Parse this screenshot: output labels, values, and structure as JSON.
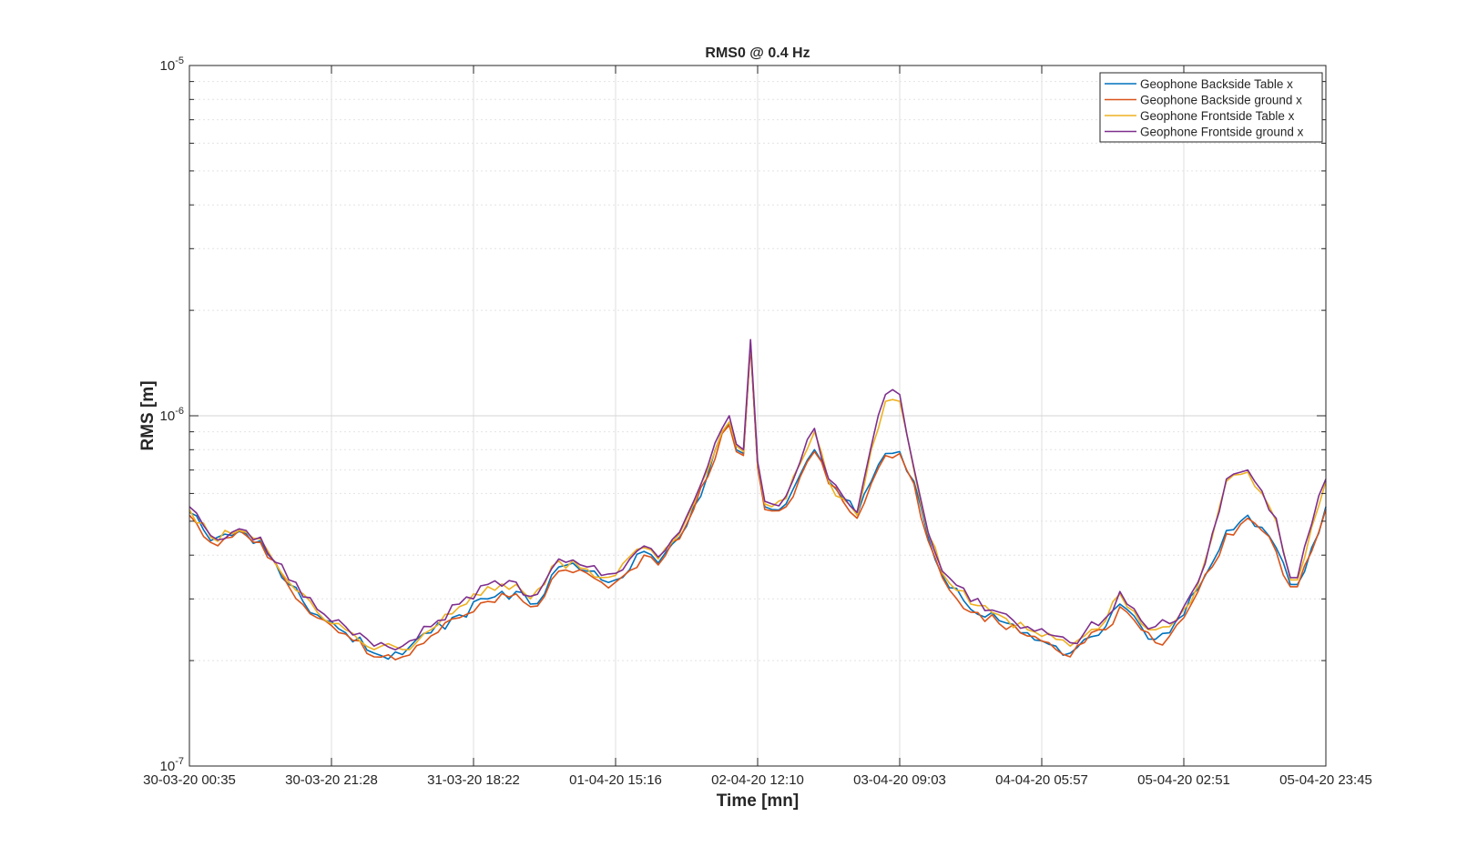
{
  "chart_data": {
    "type": "line",
    "title": "RMS0 @ 0.4 Hz",
    "xlabel": "Time [mn]",
    "ylabel": "RMS [m]",
    "y_scale": "log",
    "ylim": [
      1e-07,
      1e-05
    ],
    "y_ticks": [
      {
        "value": 1e-07,
        "base": "10",
        "exp": "-7"
      },
      {
        "value": 1e-06,
        "base": "10",
        "exp": "-6"
      },
      {
        "value": 1e-05,
        "base": "10",
        "exp": "-5"
      }
    ],
    "x_tick_labels": [
      "30-03-20 00:35",
      "30-03-20 21:28",
      "31-03-20 18:22",
      "01-04-20 15:16",
      "02-04-20 12:10",
      "03-04-20 09:03",
      "04-04-20 05:57",
      "05-04-20 02:51",
      "05-04-20 23:45"
    ],
    "grid": true,
    "legend_position": "top-right",
    "sample_count": 161,
    "series": [
      {
        "name": "Geophone Backside Table x",
        "color": "#0072BD",
        "anchors": [
          [
            0,
            5.3e-07
          ],
          [
            3,
            4.4e-07
          ],
          [
            6,
            4.55e-07
          ],
          [
            8,
            4.6e-07
          ],
          [
            10,
            4.4e-07
          ],
          [
            14,
            3.3e-07
          ],
          [
            18,
            2.7e-07
          ],
          [
            22,
            2.4e-07
          ],
          [
            26,
            2.1e-07
          ],
          [
            30,
            2.08e-07
          ],
          [
            34,
            2.4e-07
          ],
          [
            38,
            2.7e-07
          ],
          [
            42,
            3e-07
          ],
          [
            46,
            3.15e-07
          ],
          [
            48,
            2.9e-07
          ],
          [
            50,
            3.1e-07
          ],
          [
            52,
            3.7e-07
          ],
          [
            56,
            3.6e-07
          ],
          [
            58,
            3.4e-07
          ],
          [
            60,
            3.4e-07
          ],
          [
            64,
            4.1e-07
          ],
          [
            66,
            3.8e-07
          ],
          [
            69,
            4.5e-07
          ],
          [
            71,
            5.5e-07
          ],
          [
            73,
            6.8e-07
          ],
          [
            75,
            9e-07
          ],
          [
            76,
            9.5e-07
          ],
          [
            77,
            8e-07
          ],
          [
            78,
            7.8e-07
          ],
          [
            79,
            1.6e-06
          ],
          [
            80,
            7.2e-07
          ],
          [
            81,
            5.5e-07
          ],
          [
            82,
            5.4e-07
          ],
          [
            84,
            5.6e-07
          ],
          [
            86,
            6.8e-07
          ],
          [
            88,
            8e-07
          ],
          [
            90,
            6.5e-07
          ],
          [
            92,
            5.8e-07
          ],
          [
            94,
            5.2e-07
          ],
          [
            96,
            6.5e-07
          ],
          [
            98,
            7.8e-07
          ],
          [
            100,
            7.9e-07
          ],
          [
            102,
            6.5e-07
          ],
          [
            104,
            4.5e-07
          ],
          [
            106,
            3.5e-07
          ],
          [
            110,
            2.8e-07
          ],
          [
            114,
            2.6e-07
          ],
          [
            118,
            2.4e-07
          ],
          [
            122,
            2.2e-07
          ],
          [
            124,
            2.1e-07
          ],
          [
            126,
            2.3e-07
          ],
          [
            129,
            2.5e-07
          ],
          [
            131,
            2.9e-07
          ],
          [
            132,
            2.8e-07
          ],
          [
            134,
            2.5e-07
          ],
          [
            136,
            2.3e-07
          ],
          [
            138,
            2.4e-07
          ],
          [
            140,
            2.7e-07
          ],
          [
            142,
            3.2e-07
          ],
          [
            144,
            3.8e-07
          ],
          [
            146,
            4.7e-07
          ],
          [
            148,
            5e-07
          ],
          [
            149,
            5.2e-07
          ],
          [
            151,
            4.8e-07
          ],
          [
            153,
            4.2e-07
          ],
          [
            155,
            3.3e-07
          ],
          [
            156,
            3.3e-07
          ],
          [
            158,
            4.2e-07
          ],
          [
            160,
            5.5e-07
          ]
        ]
      },
      {
        "name": "Geophone Backside ground x",
        "color": "#D95319",
        "anchors": [
          [
            0,
            5.2e-07
          ],
          [
            3,
            4.35e-07
          ],
          [
            6,
            4.5e-07
          ],
          [
            8,
            4.55e-07
          ],
          [
            10,
            4.35e-07
          ],
          [
            14,
            3.25e-07
          ],
          [
            18,
            2.65e-07
          ],
          [
            22,
            2.38e-07
          ],
          [
            26,
            2.05e-07
          ],
          [
            30,
            2.05e-07
          ],
          [
            34,
            2.35e-07
          ],
          [
            38,
            2.65e-07
          ],
          [
            42,
            2.95e-07
          ],
          [
            46,
            3.1e-07
          ],
          [
            48,
            2.85e-07
          ],
          [
            50,
            3.05e-07
          ],
          [
            52,
            3.6e-07
          ],
          [
            56,
            3.55e-07
          ],
          [
            58,
            3.35e-07
          ],
          [
            60,
            3.35e-07
          ],
          [
            64,
            4e-07
          ],
          [
            66,
            3.75e-07
          ],
          [
            69,
            4.45e-07
          ],
          [
            71,
            5.4e-07
          ],
          [
            73,
            6.7e-07
          ],
          [
            75,
            8.9e-07
          ],
          [
            76,
            9.4e-07
          ],
          [
            77,
            7.9e-07
          ],
          [
            78,
            7.7e-07
          ],
          [
            79,
            1.58e-06
          ],
          [
            80,
            7.1e-07
          ],
          [
            81,
            5.4e-07
          ],
          [
            82,
            5.35e-07
          ],
          [
            84,
            5.5e-07
          ],
          [
            86,
            6.7e-07
          ],
          [
            88,
            7.9e-07
          ],
          [
            90,
            6.4e-07
          ],
          [
            92,
            5.7e-07
          ],
          [
            94,
            5.1e-07
          ],
          [
            96,
            6.4e-07
          ],
          [
            98,
            7.7e-07
          ],
          [
            100,
            7.8e-07
          ],
          [
            102,
            6.4e-07
          ],
          [
            104,
            4.4e-07
          ],
          [
            106,
            3.45e-07
          ],
          [
            110,
            2.75e-07
          ],
          [
            114,
            2.55e-07
          ],
          [
            118,
            2.35e-07
          ],
          [
            122,
            2.15e-07
          ],
          [
            124,
            2.05e-07
          ],
          [
            126,
            2.25e-07
          ],
          [
            129,
            2.45e-07
          ],
          [
            131,
            2.85e-07
          ],
          [
            132,
            2.75e-07
          ],
          [
            134,
            2.45e-07
          ],
          [
            136,
            2.25e-07
          ],
          [
            138,
            2.35e-07
          ],
          [
            140,
            2.65e-07
          ],
          [
            142,
            3.15e-07
          ],
          [
            144,
            3.7e-07
          ],
          [
            146,
            4.6e-07
          ],
          [
            148,
            4.9e-07
          ],
          [
            149,
            5.1e-07
          ],
          [
            151,
            4.7e-07
          ],
          [
            153,
            4.1e-07
          ],
          [
            155,
            3.25e-07
          ],
          [
            156,
            3.25e-07
          ],
          [
            158,
            4.1e-07
          ],
          [
            160,
            5.4e-07
          ]
        ]
      },
      {
        "name": "Geophone Frontside Table x",
        "color": "#EDB120",
        "anchors": [
          [
            0,
            5.4e-07
          ],
          [
            3,
            4.5e-07
          ],
          [
            6,
            4.6e-07
          ],
          [
            8,
            4.65e-07
          ],
          [
            10,
            4.45e-07
          ],
          [
            14,
            3.35e-07
          ],
          [
            18,
            2.75e-07
          ],
          [
            22,
            2.45e-07
          ],
          [
            26,
            2.15e-07
          ],
          [
            30,
            2.15e-07
          ],
          [
            34,
            2.45e-07
          ],
          [
            38,
            2.85e-07
          ],
          [
            42,
            3.25e-07
          ],
          [
            46,
            3.3e-07
          ],
          [
            48,
            3e-07
          ],
          [
            50,
            3.3e-07
          ],
          [
            52,
            3.85e-07
          ],
          [
            56,
            3.65e-07
          ],
          [
            58,
            3.45e-07
          ],
          [
            60,
            3.5e-07
          ],
          [
            64,
            4.2e-07
          ],
          [
            66,
            3.9e-07
          ],
          [
            69,
            4.6e-07
          ],
          [
            71,
            5.6e-07
          ],
          [
            73,
            7e-07
          ],
          [
            75,
            9e-07
          ],
          [
            76,
            9.6e-07
          ],
          [
            77,
            8.2e-07
          ],
          [
            78,
            7.9e-07
          ],
          [
            79,
            1.62e-06
          ],
          [
            80,
            7.3e-07
          ],
          [
            81,
            5.6e-07
          ],
          [
            82,
            5.5e-07
          ],
          [
            84,
            5.8e-07
          ],
          [
            86,
            7.3e-07
          ],
          [
            88,
            9e-07
          ],
          [
            90,
            6.5e-07
          ],
          [
            92,
            5.8e-07
          ],
          [
            94,
            5.2e-07
          ],
          [
            96,
            8e-07
          ],
          [
            98,
            1.1e-06
          ],
          [
            100,
            1.1e-06
          ],
          [
            102,
            7e-07
          ],
          [
            104,
            4.6e-07
          ],
          [
            106,
            3.55e-07
          ],
          [
            110,
            2.9e-07
          ],
          [
            114,
            2.7e-07
          ],
          [
            118,
            2.45e-07
          ],
          [
            122,
            2.3e-07
          ],
          [
            124,
            2.2e-07
          ],
          [
            126,
            2.35e-07
          ],
          [
            129,
            2.6e-07
          ],
          [
            131,
            3.1e-07
          ],
          [
            132,
            2.85e-07
          ],
          [
            134,
            2.55e-07
          ],
          [
            136,
            2.45e-07
          ],
          [
            138,
            2.5e-07
          ],
          [
            140,
            2.8e-07
          ],
          [
            142,
            3.3e-07
          ],
          [
            144,
            4.5e-07
          ],
          [
            146,
            6.5e-07
          ],
          [
            148,
            6.8e-07
          ],
          [
            149,
            6.9e-07
          ],
          [
            151,
            6e-07
          ],
          [
            153,
            5e-07
          ],
          [
            155,
            3.4e-07
          ],
          [
            156,
            3.4e-07
          ],
          [
            158,
            4.8e-07
          ],
          [
            160,
            6.5e-07
          ]
        ]
      },
      {
        "name": "Geophone Frontside ground x",
        "color": "#7E2F8E",
        "anchors": [
          [
            0,
            5.5e-07
          ],
          [
            3,
            4.55e-07
          ],
          [
            6,
            4.65e-07
          ],
          [
            8,
            4.7e-07
          ],
          [
            10,
            4.5e-07
          ],
          [
            14,
            3.4e-07
          ],
          [
            18,
            2.8e-07
          ],
          [
            22,
            2.5e-07
          ],
          [
            26,
            2.2e-07
          ],
          [
            30,
            2.2e-07
          ],
          [
            34,
            2.5e-07
          ],
          [
            38,
            2.9e-07
          ],
          [
            42,
            3.3e-07
          ],
          [
            46,
            3.35e-07
          ],
          [
            48,
            3.05e-07
          ],
          [
            50,
            3.35e-07
          ],
          [
            52,
            3.9e-07
          ],
          [
            56,
            3.7e-07
          ],
          [
            58,
            3.5e-07
          ],
          [
            60,
            3.55e-07
          ],
          [
            64,
            4.25e-07
          ],
          [
            66,
            3.95e-07
          ],
          [
            69,
            4.65e-07
          ],
          [
            71,
            5.7e-07
          ],
          [
            73,
            7.2e-07
          ],
          [
            75,
            9.2e-07
          ],
          [
            76,
            1e-06
          ],
          [
            77,
            8.3e-07
          ],
          [
            78,
            8e-07
          ],
          [
            79,
            1.65e-06
          ],
          [
            80,
            7.4e-07
          ],
          [
            81,
            5.7e-07
          ],
          [
            82,
            5.6e-07
          ],
          [
            84,
            5.9e-07
          ],
          [
            86,
            7.4e-07
          ],
          [
            88,
            9.2e-07
          ],
          [
            90,
            6.6e-07
          ],
          [
            92,
            5.9e-07
          ],
          [
            94,
            5.3e-07
          ],
          [
            96,
            8.2e-07
          ],
          [
            98,
            1.15e-06
          ],
          [
            100,
            1.15e-06
          ],
          [
            102,
            7.1e-07
          ],
          [
            104,
            4.65e-07
          ],
          [
            106,
            3.6e-07
          ],
          [
            110,
            2.95e-07
          ],
          [
            114,
            2.75e-07
          ],
          [
            118,
            2.5e-07
          ],
          [
            122,
            2.35e-07
          ],
          [
            124,
            2.25e-07
          ],
          [
            126,
            2.4e-07
          ],
          [
            129,
            2.65e-07
          ],
          [
            131,
            3.15e-07
          ],
          [
            132,
            2.9e-07
          ],
          [
            134,
            2.6e-07
          ],
          [
            136,
            2.5e-07
          ],
          [
            138,
            2.55e-07
          ],
          [
            140,
            2.85e-07
          ],
          [
            142,
            3.35e-07
          ],
          [
            144,
            4.6e-07
          ],
          [
            146,
            6.6e-07
          ],
          [
            148,
            6.9e-07
          ],
          [
            149,
            7e-07
          ],
          [
            151,
            6.1e-07
          ],
          [
            153,
            5.1e-07
          ],
          [
            155,
            3.45e-07
          ],
          [
            156,
            3.45e-07
          ],
          [
            158,
            4.9e-07
          ],
          [
            160,
            6.6e-07
          ]
        ]
      }
    ]
  }
}
